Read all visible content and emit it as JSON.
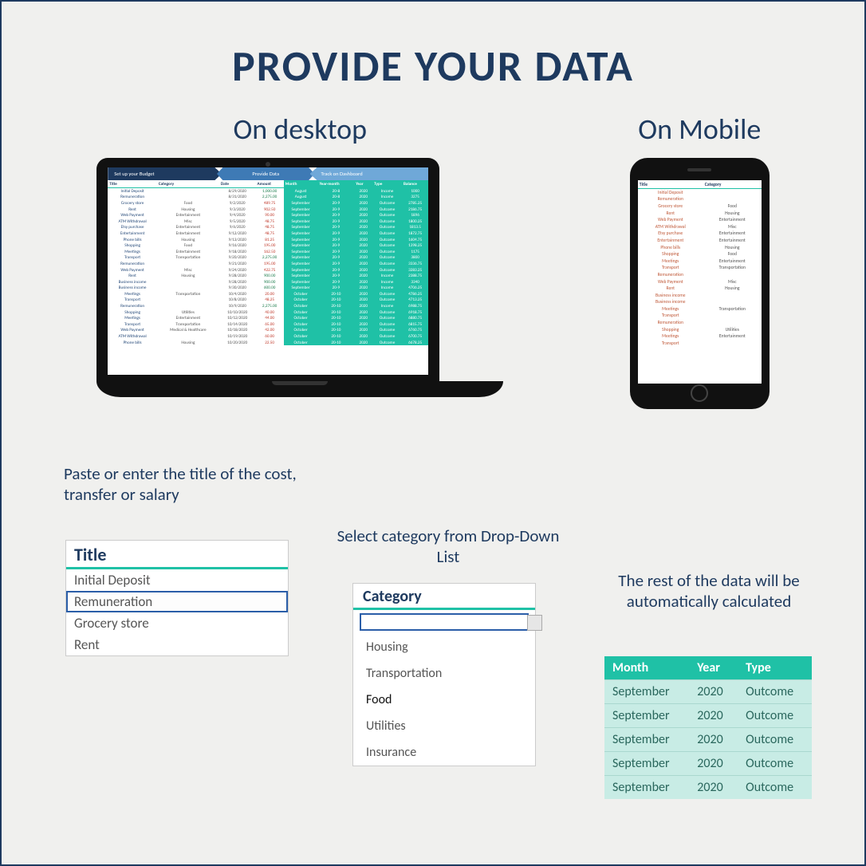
{
  "colors": {
    "navy": "#1e3a5f",
    "teal": "#1fc1a6",
    "teal_light": "#c8ece5",
    "tab_mid": "#3e7ab5",
    "tab_light": "#6fa8d8",
    "blue_sel": "#2b5ea8",
    "pos": "#1a7a4a",
    "neg": "#c0392b",
    "bg": "#f0f0ee"
  },
  "title": "PROVIDE YOUR DATA",
  "labels": {
    "desktop": "On desktop",
    "mobile": "On Mobile"
  },
  "tabs": {
    "t1": "Set up your Budget",
    "t2": "Provide Data",
    "t3": "Track on Dashboard"
  },
  "sheet_headers_left": [
    "Title",
    "Category",
    "Date",
    "Amount"
  ],
  "sheet_headers_right": [
    "Month",
    "Year-month",
    "Year",
    "Type",
    "Balance"
  ],
  "sheet_rows": [
    {
      "t": "Initial Deposit",
      "c": "",
      "d": "8/29/2020",
      "a": "1,000.00",
      "ap": true,
      "m": "August",
      "ym": "20-8",
      "y": "2020",
      "tp": "Income",
      "b": "1000"
    },
    {
      "t": "Remuneration",
      "c": "",
      "d": "8/31/2020",
      "a": "2,275.00",
      "ap": true,
      "m": "August",
      "ym": "20-8",
      "y": "2020",
      "tp": "Income",
      "b": "3275"
    },
    {
      "t": "Grocery store",
      "c": "Food",
      "d": "9/2/2020",
      "a": "489.75",
      "ap": false,
      "m": "September",
      "ym": "20-9",
      "y": "2020",
      "tp": "Outcome",
      "b": "2785.25"
    },
    {
      "t": "Rent",
      "c": "Housing",
      "d": "9/3/2020",
      "a": "902.50",
      "ap": false,
      "m": "September",
      "ym": "20-9",
      "y": "2020",
      "tp": "Outcome",
      "b": "2186.75"
    },
    {
      "t": "Web Payment",
      "c": "Entertainment",
      "d": "9/4/2020",
      "a": "90.00",
      "ap": false,
      "m": "September",
      "ym": "20-9",
      "y": "2020",
      "tp": "Outcome",
      "b": "1896"
    },
    {
      "t": "ATM Withdrawal",
      "c": "Misc",
      "d": "9/5/2020",
      "a": "48.75",
      "ap": false,
      "m": "September",
      "ym": "20-9",
      "y": "2020",
      "tp": "Outcome",
      "b": "1800.25"
    },
    {
      "t": "Etsy purchase",
      "c": "Entertainment",
      "d": "9/6/2020",
      "a": "48.75",
      "ap": false,
      "m": "September",
      "ym": "20-9",
      "y": "2020",
      "tp": "Outcome",
      "b": "1813.5"
    },
    {
      "t": "Entertainment",
      "c": "Entertainment",
      "d": "9/12/2020",
      "a": "48.75",
      "ap": false,
      "m": "September",
      "ym": "20-9",
      "y": "2020",
      "tp": "Outcome",
      "b": "1872.75"
    },
    {
      "t": "Phone bills",
      "c": "Housing",
      "d": "9/13/2020",
      "a": "81.25",
      "ap": false,
      "m": "September",
      "ym": "20-9",
      "y": "2020",
      "tp": "Outcome",
      "b": "1604.75"
    },
    {
      "t": "Shopping",
      "c": "Food",
      "d": "9/16/2020",
      "a": "195.00",
      "ap": false,
      "m": "September",
      "ym": "20-9",
      "y": "2020",
      "tp": "Outcome",
      "b": "1398.25"
    },
    {
      "t": "Meetings",
      "c": "Entertainment",
      "d": "9/18/2020",
      "a": "162.50",
      "ap": false,
      "m": "September",
      "ym": "20-9",
      "y": "2020",
      "tp": "Outcome",
      "b": "1175"
    },
    {
      "t": "Transport",
      "c": "Transportation",
      "d": "9/20/2020",
      "a": "2,275.00",
      "ap": true,
      "m": "September",
      "ym": "20-9",
      "y": "2020",
      "tp": "Outcome",
      "b": "3800"
    },
    {
      "t": "Remuneration",
      "c": "",
      "d": "9/21/2020",
      "a": "195.00",
      "ap": false,
      "m": "September",
      "ym": "20-9",
      "y": "2020",
      "tp": "Outcome",
      "b": "3336.75"
    },
    {
      "t": "Web Payment",
      "c": "Misc",
      "d": "9/24/2020",
      "a": "422.75",
      "ap": false,
      "m": "September",
      "ym": "20-9",
      "y": "2020",
      "tp": "Outcome",
      "b": "3283.25"
    },
    {
      "t": "Rent",
      "c": "Housing",
      "d": "9/28/2020",
      "a": "900.00",
      "ap": true,
      "m": "September",
      "ym": "20-9",
      "y": "2020",
      "tp": "Income",
      "b": "2388.75"
    },
    {
      "t": "Business income",
      "c": "",
      "d": "9/28/2020",
      "a": "900.00",
      "ap": true,
      "m": "September",
      "ym": "20-9",
      "y": "2020",
      "tp": "Income",
      "b": "3340"
    },
    {
      "t": "Business income",
      "c": "",
      "d": "9/30/2020",
      "a": "600.00",
      "ap": true,
      "m": "September",
      "ym": "20-9",
      "y": "2020",
      "tp": "Income",
      "b": "4706.25"
    },
    {
      "t": "Meetings",
      "c": "Transportation",
      "d": "10/4/2020",
      "a": "20.00",
      "ap": false,
      "m": "October",
      "ym": "20-10",
      "y": "2020",
      "tp": "Outcome",
      "b": "4786.25"
    },
    {
      "t": "Transport",
      "c": "",
      "d": "10/8/2020",
      "a": "48.25",
      "ap": false,
      "m": "October",
      "ym": "20-10",
      "y": "2020",
      "tp": "Outcome",
      "b": "4713.25"
    },
    {
      "t": "Remuneration",
      "c": "",
      "d": "10/9/2020",
      "a": "2,275.00",
      "ap": true,
      "m": "October",
      "ym": "20-10",
      "y": "2020",
      "tp": "Income",
      "b": "6988.75"
    },
    {
      "t": "Shopping",
      "c": "Utilities",
      "d": "10/10/2020",
      "a": "40.00",
      "ap": false,
      "m": "October",
      "ym": "20-10",
      "y": "2020",
      "tp": "Outcome",
      "b": "6918.75"
    },
    {
      "t": "Meetings",
      "c": "Entertainment",
      "d": "10/12/2020",
      "a": "44.00",
      "ap": false,
      "m": "October",
      "ym": "20-10",
      "y": "2020",
      "tp": "Outcome",
      "b": "6880.75"
    },
    {
      "t": "Transport",
      "c": "Transportation",
      "d": "10/14/2020",
      "a": "65.00",
      "ap": false,
      "m": "October",
      "ym": "20-10",
      "y": "2020",
      "tp": "Outcome",
      "b": "6815.75"
    },
    {
      "t": "Web Payment",
      "c": "Medical & Healthcare",
      "d": "10/18/2020",
      "a": "42.00",
      "ap": false,
      "m": "October",
      "ym": "20-10",
      "y": "2020",
      "tp": "Outcome",
      "b": "6760.75"
    },
    {
      "t": "ATM Withdrawal",
      "c": "",
      "d": "10/19/2020",
      "a": "60.00",
      "ap": false,
      "m": "October",
      "ym": "20-10",
      "y": "2020",
      "tp": "Outcome",
      "b": "6700.75"
    },
    {
      "t": "Phone bills",
      "c": "Housing",
      "d": "10/20/2020",
      "a": "22.50",
      "ap": false,
      "m": "October",
      "ym": "20-10",
      "y": "2020",
      "tp": "Outcome",
      "b": "6678.25"
    }
  ],
  "phone_headers": [
    "Title",
    "Category"
  ],
  "phone_rows": [
    [
      "Initial Deposit",
      ""
    ],
    [
      "Remuneration",
      ""
    ],
    [
      "Grocery store",
      "Food"
    ],
    [
      "Rent",
      "Housing"
    ],
    [
      "Web Payment",
      "Entertainment"
    ],
    [
      "ATM Withdrawal",
      "Misc"
    ],
    [
      "Etsy purchase",
      "Entertainment"
    ],
    [
      "Entertainment",
      "Entertainment"
    ],
    [
      "Phone bills",
      "Housing"
    ],
    [
      "Shopping",
      "Food"
    ],
    [
      "Meetings",
      "Entertainment"
    ],
    [
      "Transport",
      "Transportation"
    ],
    [
      "Remuneration",
      ""
    ],
    [
      "Web Payment",
      "Misc"
    ],
    [
      "Rent",
      "Housing"
    ],
    [
      "Business income",
      ""
    ],
    [
      "Business income",
      ""
    ],
    [
      "Meetings",
      "Transportation"
    ],
    [
      "Transport",
      ""
    ],
    [
      "Remuneration",
      ""
    ],
    [
      "Shopping",
      "Utilities"
    ],
    [
      "Meetings",
      "Entertainment"
    ],
    [
      "Transport",
      ""
    ]
  ],
  "instructions": {
    "title_instr": "Paste or enter the title of the cost, transfer or salary",
    "cat_instr": "Select category from Drop-Down List",
    "auto_instr": "The rest of the data will be automatically calculated"
  },
  "title_box": {
    "header": "Title",
    "rows": [
      "Initial Deposit",
      "Remuneration",
      "Grocery store",
      "Rent"
    ],
    "selected_index": 1
  },
  "cat_box": {
    "header": "Category",
    "options": [
      "Housing",
      "Transportation",
      "Food",
      "Utilities",
      "Insurance"
    ],
    "selected_index": 2
  },
  "auto_table": {
    "headers": [
      "Month",
      "Year",
      "Type"
    ],
    "rows": [
      [
        "September",
        "2020",
        "Outcome"
      ],
      [
        "September",
        "2020",
        "Outcome"
      ],
      [
        "September",
        "2020",
        "Outcome"
      ],
      [
        "September",
        "2020",
        "Outcome"
      ],
      [
        "September",
        "2020",
        "Outcome"
      ]
    ]
  }
}
